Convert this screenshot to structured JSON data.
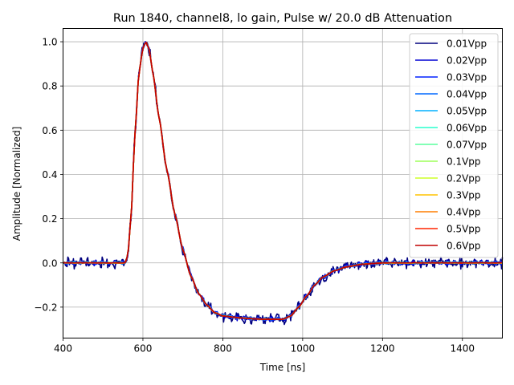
{
  "chart_data": {
    "type": "line",
    "title": "Run 1840, channel8, lo gain, Pulse w/ 20.0 dB Attenuation",
    "xlabel": "Time [ns]",
    "ylabel": "Amplitude [Normalized]",
    "xlim": [
      400,
      1500
    ],
    "ylim": [
      -0.34,
      1.06
    ],
    "xticks": [
      400,
      600,
      800,
      1000,
      1200,
      1400
    ],
    "yticks": [
      -0.2,
      0.0,
      0.2,
      0.4,
      0.6,
      0.8,
      1.0
    ],
    "ytick_labels": [
      "−0.2",
      "0.0",
      "0.2",
      "0.4",
      "0.6",
      "0.8",
      "1.0"
    ],
    "grid": true,
    "legend_position": "top-right",
    "pulse_shape": {
      "x": [
        400,
        500,
        555,
        562,
        570,
        580,
        590,
        600,
        607,
        615,
        625,
        640,
        660,
        680,
        700,
        720,
        740,
        760,
        780,
        800,
        850,
        900,
        950,
        970,
        990,
        1010,
        1030,
        1050,
        1080,
        1110,
        1150,
        1200,
        1300,
        1400,
        1500
      ],
      "y": [
        0.0,
        0.0,
        0.0,
        0.03,
        0.2,
        0.58,
        0.86,
        0.97,
        1.0,
        0.97,
        0.86,
        0.66,
        0.42,
        0.22,
        0.06,
        -0.06,
        -0.14,
        -0.19,
        -0.225,
        -0.24,
        -0.25,
        -0.255,
        -0.255,
        -0.24,
        -0.2,
        -0.15,
        -0.1,
        -0.065,
        -0.035,
        -0.018,
        -0.006,
        0.0,
        0.0,
        0.0,
        0.0
      ]
    },
    "series": [
      {
        "name": "0.01Vpp",
        "color": "#00007f",
        "noise": 0.018
      },
      {
        "name": "0.02Vpp",
        "color": "#0000d4",
        "noise": 0.009
      },
      {
        "name": "0.03Vpp",
        "color": "#0020ff",
        "noise": 0.006
      },
      {
        "name": "0.04Vpp",
        "color": "#0068ff",
        "noise": 0.004
      },
      {
        "name": "0.05Vpp",
        "color": "#00b0ff",
        "noise": 0.003
      },
      {
        "name": "0.06Vpp",
        "color": "#28ffce",
        "noise": 0.002
      },
      {
        "name": "0.07Vpp",
        "color": "#5aff9d",
        "noise": 0.002
      },
      {
        "name": "0.1Vpp",
        "color": "#9dff5a",
        "noise": 0.0015
      },
      {
        "name": "0.2Vpp",
        "color": "#ceff29",
        "noise": 0.001
      },
      {
        "name": "0.3Vpp",
        "color": "#ffc400",
        "noise": 0.001
      },
      {
        "name": "0.4Vpp",
        "color": "#ff7e00",
        "noise": 0.001
      },
      {
        "name": "0.5Vpp",
        "color": "#ff2500",
        "noise": 0.001
      },
      {
        "name": "0.6Vpp",
        "color": "#c00000",
        "noise": 0.0
      }
    ]
  }
}
